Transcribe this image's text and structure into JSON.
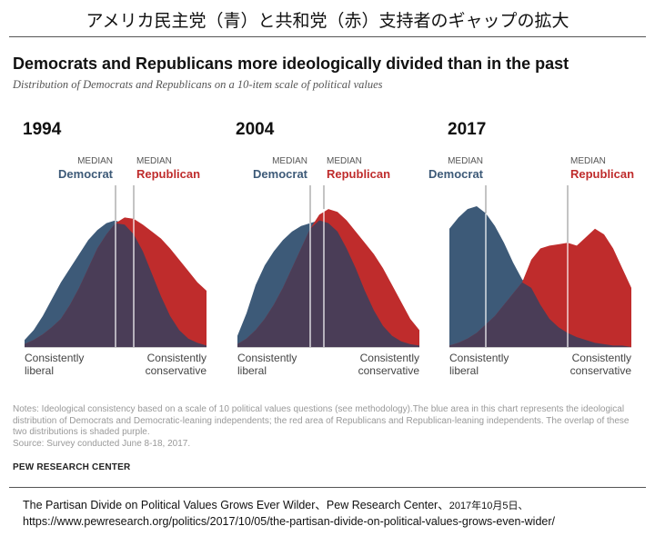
{
  "page": {
    "jp_title": "アメリカ民主党（青）と共和党（赤）支持者のギャップの拡大",
    "headline": "Democrats and Republicans more ideologically divided than in the past",
    "subhead": "Distribution of Democrats and Republicans on a 10-item scale of political values",
    "notes": "Notes: Ideological consistency based on a scale of 10 political values questions (see methodology).The blue area in this chart represents the ideological distribution of Democrats and Democratic-leaning independents; the red area of Republicans and Republican-leaning independents. The overlap of these two distributions is shaded purple.",
    "source": "Source: Survey conducted June 8-18, 2017.",
    "brand": "PEW RESEARCH CENTER",
    "citation_line1": "The Partisan Divide on Political Values Grows Ever Wilder、Pew Research Center、",
    "citation_date": "2017年10月5日、",
    "citation_line2": "https://www.pewresearch.org/politics/2017/10/05/the-partisan-divide-on-political-values-grows-even-wider/"
  },
  "chart_data": {
    "type": "area",
    "x_scale": "ideological consistency scale, 0 (consistently liberal) to 20 (consistently conservative)",
    "xlim": [
      0,
      20
    ],
    "ylim": [
      0,
      100
    ],
    "axis_left_label": "Consistently liberal",
    "axis_right_label": "Consistently conservative",
    "median_word": "MEDIAN",
    "democrat_label": "Democrat",
    "republican_label": "Republican",
    "colors": {
      "democrat": "#3d5a78",
      "republican": "#bf2c2c",
      "overlap": "#4a3d57",
      "median_line": "#ffffff"
    },
    "panels": [
      {
        "year": "1994",
        "democrat_median": 10,
        "republican_median": 12,
        "democrat": [
          5,
          12,
          22,
          34,
          46,
          56,
          66,
          76,
          83,
          88,
          90,
          87,
          80,
          68,
          52,
          36,
          22,
          12,
          6,
          3,
          1
        ],
        "republican": [
          2,
          5,
          9,
          14,
          20,
          30,
          42,
          56,
          70,
          80,
          88,
          92,
          91,
          87,
          82,
          77,
          70,
          62,
          54,
          46,
          40
        ]
      },
      {
        "year": "2004",
        "democrat_median": 8,
        "republican_median": 9.5,
        "democrat": [
          8,
          24,
          44,
          58,
          68,
          76,
          82,
          86,
          88,
          90,
          88,
          82,
          70,
          56,
          40,
          26,
          15,
          8,
          4,
          2,
          1
        ],
        "republican": [
          2,
          6,
          12,
          20,
          30,
          42,
          56,
          70,
          84,
          94,
          98,
          96,
          90,
          82,
          74,
          66,
          56,
          44,
          32,
          20,
          12
        ]
      },
      {
        "year": "2017",
        "democrat_median": 4,
        "republican_median": 13,
        "democrat": [
          84,
          92,
          98,
          100,
          95,
          86,
          74,
          60,
          48,
          42,
          30,
          20,
          14,
          10,
          7,
          5,
          3,
          2,
          1,
          1,
          0
        ],
        "republican": [
          1,
          3,
          6,
          10,
          16,
          22,
          30,
          38,
          46,
          62,
          70,
          72,
          73,
          74,
          72,
          78,
          84,
          80,
          70,
          56,
          42
        ]
      }
    ]
  }
}
